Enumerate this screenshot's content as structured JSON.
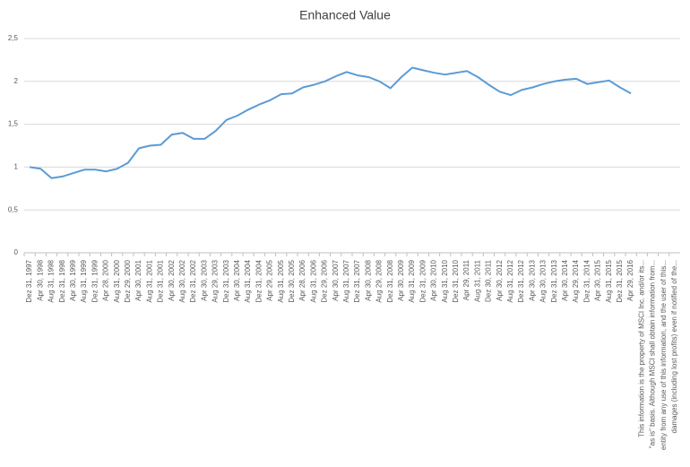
{
  "chart_data": {
    "type": "line",
    "title": "Enhanced Value",
    "categories": [
      "Dez 31, 1997",
      "Apr 30, 1998",
      "Aug 31, 1998",
      "Dez 31, 1998",
      "Apr 30, 1999",
      "Aug 31, 1999",
      "Dez 31, 1999",
      "Apr 28, 2000",
      "Aug 31, 2000",
      "Dez 29, 2000",
      "Apr 30, 2001",
      "Aug 31, 2001",
      "Dez 31, 2001",
      "Apr 30, 2002",
      "Aug 30, 2002",
      "Dez 31, 2002",
      "Apr 30, 2003",
      "Aug 29, 2003",
      "Dez 31, 2003",
      "Apr 30, 2004",
      "Aug 31, 2004",
      "Dez 31, 2004",
      "Apr 29, 2005",
      "Aug 31, 2005",
      "Dez 30, 2005",
      "Apr 28, 2006",
      "Aug 31, 2006",
      "Dez 29, 2006",
      "Apr 30, 2007",
      "Aug 31, 2007",
      "Dez 31, 2007",
      "Apr 30, 2008",
      "Aug 29, 2008",
      "Dez 31, 2008",
      "Apr 30, 2009",
      "Aug 31, 2009",
      "Dez 31, 2009",
      "Apr 30, 2010",
      "Aug 31, 2010",
      "Dez 31, 2010",
      "Apr 29, 2011",
      "Aug 31, 2011",
      "Dez 30, 2011",
      "Apr 30, 2012",
      "Aug 31, 2012",
      "Dez 31, 2012",
      "Apr 30, 2013",
      "Aug 30, 2013",
      "Dez 31, 2013",
      "Apr 30, 2014",
      "Aug 29, 2014",
      "Dez 31, 2014",
      "Apr 30, 2015",
      "Aug 31, 2015",
      "Dez 31, 2015",
      "Apr 29, 2016",
      "This information is the property of MSCI Inc. and/or its...",
      "\"as is\" basis. Although MSCI shall obtain information from...",
      "entity from any use of this information, and the user of this...",
      "damages (including lost profits) even if notified of the..."
    ],
    "series": [
      {
        "name": "Enhanced Value",
        "color": "#5b9bd5",
        "values": [
          1.0,
          0.98,
          0.87,
          0.89,
          0.93,
          0.97,
          0.97,
          0.95,
          0.98,
          1.05,
          1.22,
          1.25,
          1.26,
          1.38,
          1.4,
          1.33,
          1.33,
          1.42,
          1.55,
          1.6,
          1.67,
          1.73,
          1.78,
          1.85,
          1.86,
          1.93,
          1.96,
          2.0,
          2.06,
          2.11,
          2.07,
          2.05,
          2.0,
          1.92,
          2.05,
          2.16,
          2.13,
          2.1,
          2.08,
          2.1,
          2.12,
          2.05,
          1.96,
          1.88,
          1.84,
          1.9,
          1.93,
          1.97,
          2.0,
          2.02,
          2.03,
          1.97,
          1.99,
          2.01,
          1.93,
          1.86,
          null,
          null,
          null,
          null
        ]
      }
    ],
    "ylim": [
      0,
      2.5
    ],
    "yticks": [
      0,
      {
        "value": 0.5,
        "label": "0,5"
      },
      1,
      {
        "value": 1.5,
        "label": "1,5"
      },
      2,
      {
        "value": 2.5,
        "label": "2,5"
      }
    ],
    "grid": true
  }
}
